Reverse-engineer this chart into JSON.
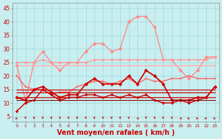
{
  "xlabel": "Vent moyen/en rafales ( km/h )",
  "background_color": "#c8eef0",
  "grid_color": "#a0d8d8",
  "x_ticks": [
    0,
    1,
    2,
    3,
    4,
    5,
    6,
    7,
    8,
    9,
    10,
    11,
    12,
    13,
    14,
    15,
    16,
    17,
    18,
    19,
    20,
    21,
    22,
    23
  ],
  "ylim": [
    3,
    47
  ],
  "yticks": [
    5,
    10,
    15,
    20,
    25,
    30,
    35,
    40,
    45
  ],
  "lines": [
    {
      "color": "#ff8888",
      "linewidth": 1.0,
      "marker": "D",
      "markersize": 2.5,
      "y": [
        24,
        11,
        25,
        29,
        25,
        22,
        25,
        25,
        29,
        32,
        32,
        29,
        30,
        40,
        42,
        42,
        38,
        26,
        26,
        22,
        19,
        22,
        27,
        27
      ]
    },
    {
      "color": "#ff9999",
      "linewidth": 1.0,
      "marker": "D",
      "markersize": 2.0,
      "y": [
        25,
        25,
        25,
        26,
        25,
        25,
        25,
        25,
        25,
        26,
        26,
        26,
        26,
        26,
        26,
        26,
        26,
        26,
        26,
        26,
        26,
        26,
        26,
        27
      ]
    },
    {
      "color": "#ffaaaa",
      "linewidth": 1.0,
      "marker": null,
      "markersize": 0,
      "y": [
        24,
        24,
        24,
        24,
        24,
        24,
        24,
        24,
        24,
        24,
        24,
        24,
        24,
        24,
        24,
        24,
        24,
        24,
        24,
        24,
        24,
        24,
        24,
        24
      ]
    },
    {
      "color": "#ff6666",
      "linewidth": 1.0,
      "marker": "s",
      "markersize": 2.0,
      "y": [
        20,
        16,
        15,
        15,
        13,
        14,
        14,
        16,
        17,
        18,
        18,
        17,
        18,
        19,
        17,
        19,
        18,
        18,
        19,
        19,
        20,
        19,
        19,
        19
      ]
    },
    {
      "color": "#cc0000",
      "linewidth": 1.3,
      "marker": "D",
      "markersize": 2.5,
      "y": [
        12,
        11,
        15,
        16,
        14,
        12,
        13,
        13,
        17,
        19,
        17,
        17,
        17,
        20,
        17,
        22,
        20,
        17,
        11,
        11,
        11,
        12,
        12,
        16
      ]
    },
    {
      "color": "#cc0000",
      "linewidth": 0.9,
      "marker": null,
      "markersize": 0,
      "y": [
        15,
        15,
        15,
        15,
        15,
        15,
        15,
        15,
        15,
        15,
        15,
        15,
        15,
        15,
        15,
        15,
        15,
        15,
        15,
        15,
        15,
        15,
        15,
        15
      ]
    },
    {
      "color": "#cc0000",
      "linewidth": 0.9,
      "marker": null,
      "markersize": 0,
      "y": [
        14,
        14,
        14,
        14,
        14,
        14,
        14,
        14,
        14,
        14,
        14,
        14,
        14,
        14,
        14,
        14,
        14,
        14,
        14,
        14,
        14,
        14,
        14,
        14
      ]
    },
    {
      "color": "#cc0000",
      "linewidth": 1.1,
      "marker": "D",
      "markersize": 2.0,
      "y": [
        7,
        10,
        11,
        15,
        13,
        11,
        12,
        12,
        13,
        13,
        12,
        13,
        12,
        13,
        12,
        13,
        11,
        10,
        10,
        11,
        10,
        11,
        12,
        16
      ]
    },
    {
      "color": "#cc0000",
      "linewidth": 0.9,
      "marker": null,
      "markersize": 0,
      "y": [
        12,
        12,
        12,
        12,
        12,
        12,
        12,
        12,
        12,
        12,
        12,
        12,
        12,
        12,
        12,
        12,
        12,
        12,
        12,
        12,
        12,
        12,
        12,
        12
      ]
    },
    {
      "color": "#880000",
      "linewidth": 0.8,
      "marker": null,
      "markersize": 0,
      "y": [
        11,
        11,
        11,
        11,
        11,
        11,
        11,
        11,
        11,
        11,
        11,
        11,
        11,
        11,
        11,
        11,
        11,
        11,
        11,
        11,
        11,
        11,
        11,
        11
      ]
    }
  ],
  "arrow_directions": [
    45,
    0,
    0,
    0,
    0,
    0,
    0,
    0,
    0,
    0,
    0,
    0,
    0,
    0,
    315,
    0,
    0,
    0,
    0,
    315,
    45,
    45,
    45,
    45
  ],
  "xlabel_color": "#cc0000",
  "tick_color": "#cc0000",
  "axis_label_fontsize": 7
}
